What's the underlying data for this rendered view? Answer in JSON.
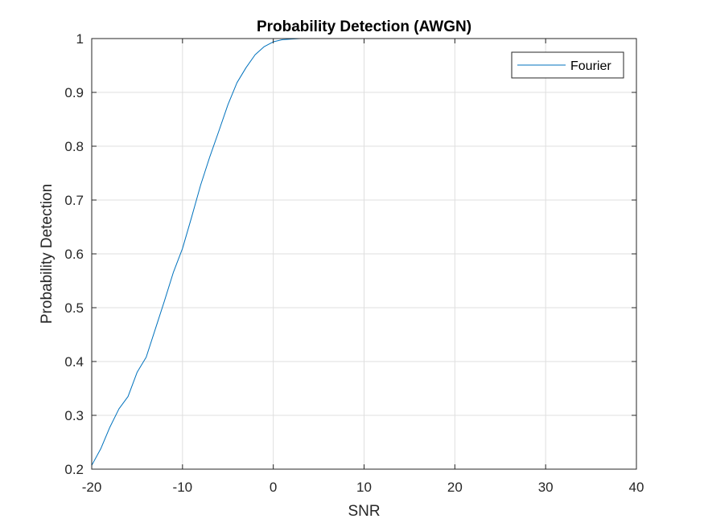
{
  "colors": {
    "series": "#0072BD",
    "grid": "#DFDFDF",
    "axis": "#262626",
    "background": "#FFFFFF"
  },
  "chart_data": {
    "type": "line",
    "title": "Probability Detection (AWGN)",
    "xlabel": "SNR",
    "ylabel": "Probability Detection",
    "xlim": [
      -20,
      40
    ],
    "ylim": [
      0.2,
      1
    ],
    "xticks": [
      -20,
      -10,
      0,
      10,
      20,
      30,
      40
    ],
    "yticks": [
      0.2,
      0.3,
      0.4,
      0.5,
      0.6,
      0.7,
      0.8,
      0.9,
      1
    ],
    "xtick_labels": [
      "-20",
      "-10",
      "0",
      "10",
      "20",
      "30",
      "40"
    ],
    "ytick_labels": [
      "0.2",
      "0.3",
      "0.4",
      "0.5",
      "0.6",
      "0.7",
      "0.8",
      "0.9",
      "1"
    ],
    "grid": true,
    "box": true,
    "legend_position": "top-right",
    "series": [
      {
        "name": "Fourier",
        "x": [
          -20,
          -19,
          -18,
          -17,
          -16,
          -15,
          -14,
          -13,
          -12,
          -11,
          -10,
          -9,
          -8,
          -7,
          -6,
          -5,
          -4,
          -3,
          -2,
          -1,
          0,
          1,
          2,
          3,
          4,
          5,
          10,
          15,
          20,
          25,
          30,
          35,
          40
        ],
        "y": [
          0.207,
          0.238,
          0.278,
          0.312,
          0.335,
          0.38,
          0.408,
          0.46,
          0.512,
          0.566,
          0.61,
          0.668,
          0.728,
          0.78,
          0.828,
          0.877,
          0.918,
          0.946,
          0.97,
          0.985,
          0.994,
          0.998,
          0.999,
          1.0,
          1.0,
          1.0,
          1.0,
          1.0,
          1.0,
          1.0,
          1.0,
          1.0,
          1.0
        ]
      }
    ]
  }
}
